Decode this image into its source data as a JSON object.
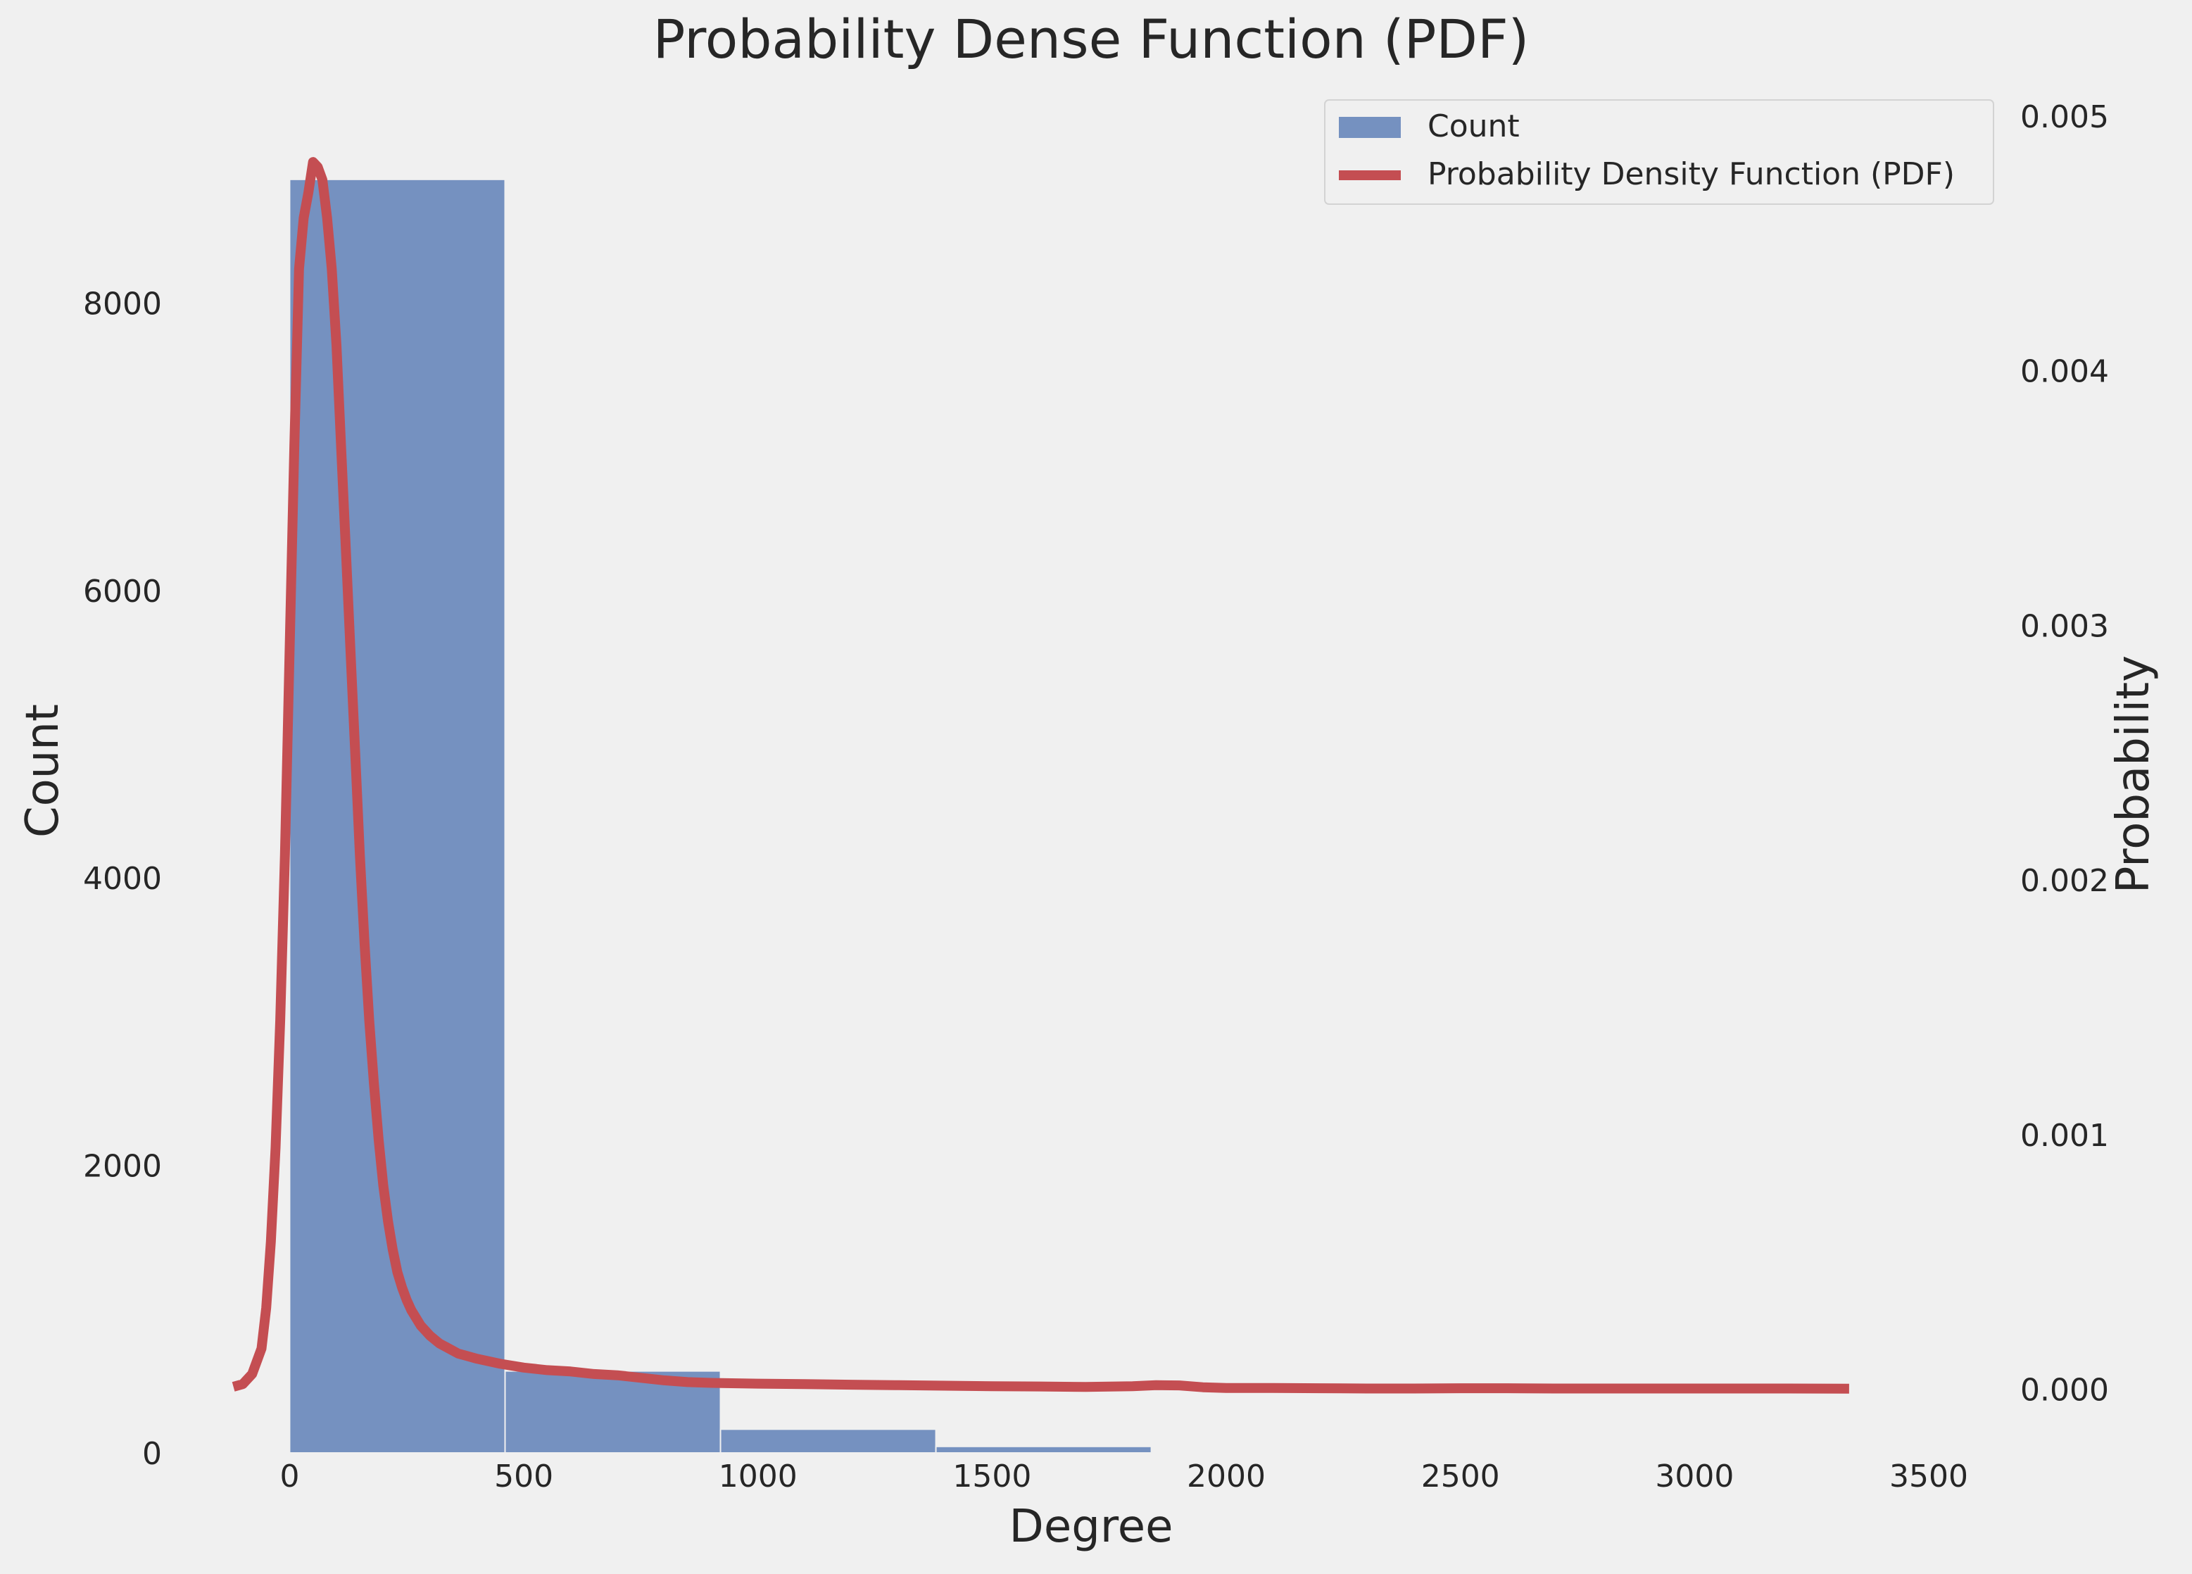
{
  "chart_data": {
    "type": "bar",
    "title": "Probability Dense Function (PDF)",
    "xlabel": "Degree",
    "ylabel_left": "Count",
    "ylabel_right": "Probability",
    "xlim": [
      -160,
      3500
    ],
    "ylim_left": [
      0,
      9300
    ],
    "ylim_right": [
      -0.00025,
      0.005
    ],
    "x_ticks": [
      0,
      500,
      1000,
      1500,
      2000,
      2500,
      3000,
      3500
    ],
    "y_ticks_left": [
      0,
      2000,
      4000,
      6000,
      8000
    ],
    "y_ticks_right": [
      0.0,
      0.001,
      0.002,
      0.003,
      0.004,
      0.005
    ],
    "y_tick_labels_right": [
      "0.000",
      "0.001",
      "0.002",
      "0.003",
      "0.004",
      "0.005"
    ],
    "grid": false,
    "legend_position": "top-right",
    "legend": [
      {
        "label": "Count",
        "kind": "patch",
        "color": "#4c72b0"
      },
      {
        "label": "Probability Density Function (PDF)",
        "kind": "line",
        "color": "#c44e52"
      }
    ],
    "series": [
      {
        "name": "Count",
        "kind": "histogram",
        "color": "#4c72b0",
        "bins": [
          {
            "x0": 0,
            "x1": 460,
            "value": 8860
          },
          {
            "x0": 460,
            "x1": 920,
            "value": 570
          },
          {
            "x0": 920,
            "x1": 1380,
            "value": 165
          },
          {
            "x0": 1380,
            "x1": 1840,
            "value": 45
          }
        ]
      },
      {
        "name": "Probability Density Function (PDF)",
        "kind": "line",
        "axis": "right",
        "color": "#c44e52",
        "x": [
          -120,
          -100,
          -80,
          -60,
          -50,
          -40,
          -30,
          -20,
          -10,
          0,
          10,
          20,
          30,
          40,
          50,
          60,
          70,
          80,
          90,
          100,
          110,
          120,
          130,
          140,
          150,
          160,
          170,
          180,
          190,
          200,
          210,
          220,
          230,
          240,
          250,
          260,
          270,
          280,
          290,
          300,
          320,
          340,
          360,
          380,
          400,
          450,
          500,
          550,
          600,
          650,
          700,
          750,
          800,
          850,
          900,
          1000,
          1100,
          1200,
          1300,
          1400,
          1500,
          1600,
          1700,
          1800,
          1850,
          1900,
          1950,
          2000,
          2100,
          2200,
          2300,
          2400,
          2500,
          2600,
          2700,
          2800,
          2900,
          3000,
          3100,
          3200,
          3330
        ],
        "y": [
          1e-05,
          2e-05,
          6e-05,
          0.00016,
          0.00032,
          0.00058,
          0.00095,
          0.00145,
          0.0021,
          0.0029,
          0.0037,
          0.0044,
          0.0046,
          0.0047,
          0.00482,
          0.0048,
          0.00475,
          0.0046,
          0.0044,
          0.0041,
          0.0037,
          0.0033,
          0.0029,
          0.0025,
          0.0021,
          0.00175,
          0.00145,
          0.0012,
          0.00098,
          0.0008,
          0.00066,
          0.00055,
          0.00046,
          0.0004,
          0.00035,
          0.00031,
          0.00028,
          0.00025,
          0.00023,
          0.00021,
          0.00018,
          0.00016,
          0.00014,
          0.00013,
          0.00012,
          0.0001,
          8.5e-05,
          7.5e-05,
          7e-05,
          6e-05,
          5.5e-05,
          4.5e-05,
          3.5e-05,
          2.8e-05,
          2.5e-05,
          2.2e-05,
          2e-05,
          1.8e-05,
          1.6e-05,
          1.4e-05,
          1.2e-05,
          1.1e-05,
          9e-06,
          1.2e-05,
          1.6e-05,
          1.5e-05,
          8e-06,
          5e-06,
          5e-06,
          4e-06,
          3e-06,
          3e-06,
          4e-06,
          4e-06,
          3e-06,
          3e-06,
          3e-06,
          3e-06,
          3e-06,
          3e-06,
          2e-06
        ]
      }
    ]
  }
}
